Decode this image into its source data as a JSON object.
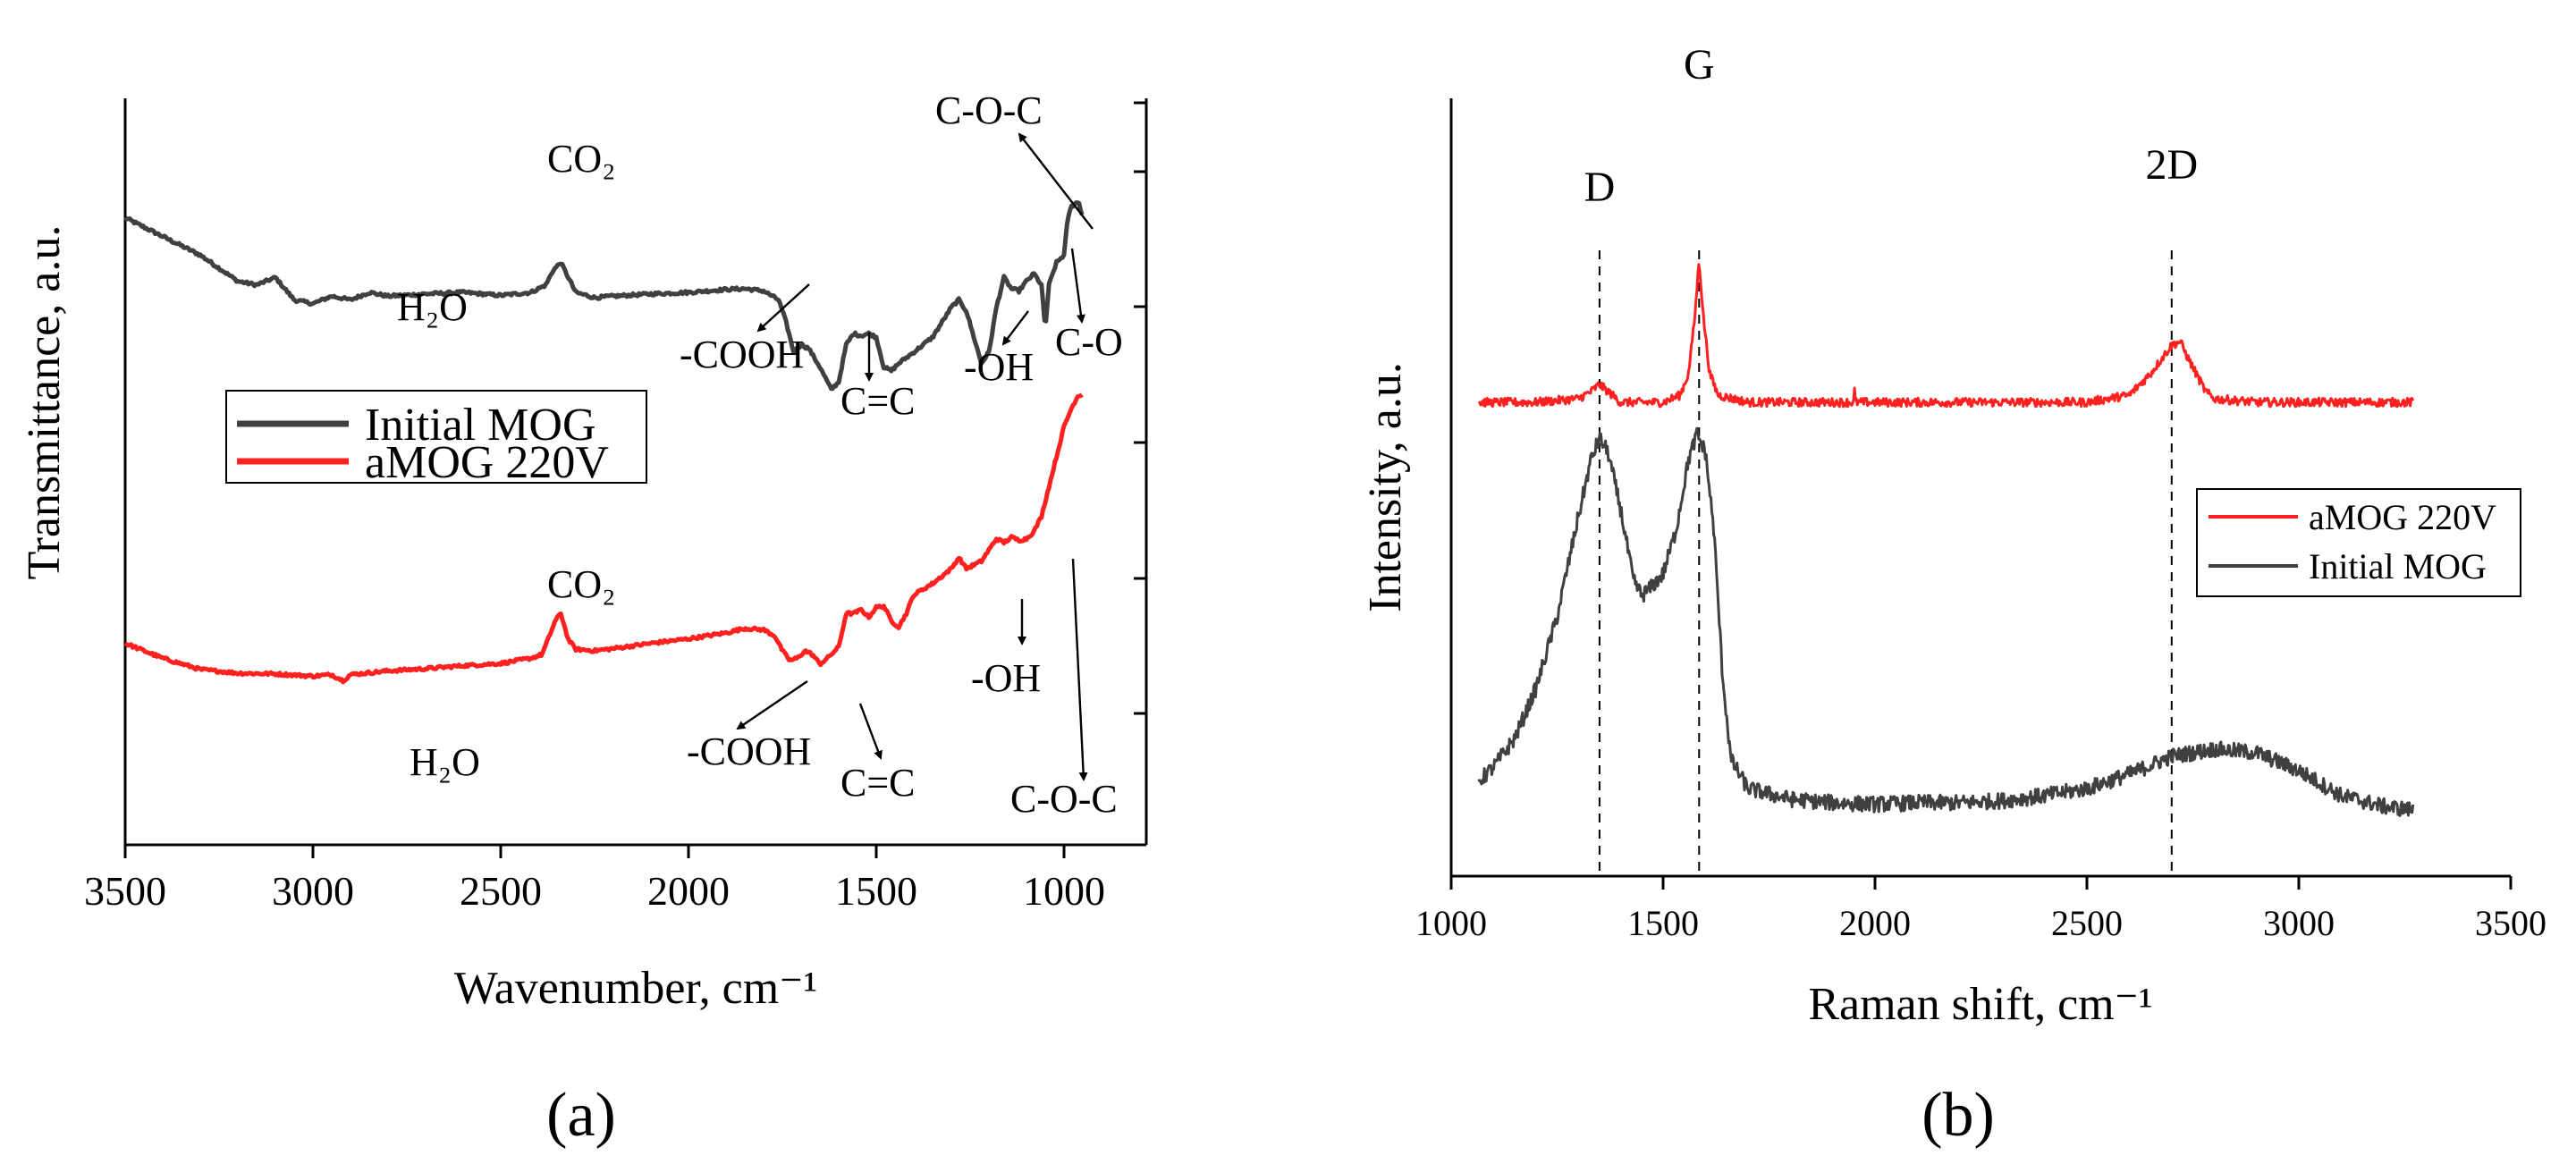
{
  "chart_data": [
    {
      "panel_label": "(a)",
      "type": "line",
      "xlabel": "Wavenumber, cm⁻¹",
      "ylabel": "Transmittance, a.u.",
      "xlim": [
        3500,
        950
      ],
      "x_reversed": true,
      "xticks": [
        3500,
        3000,
        2500,
        2000,
        1500,
        1000
      ],
      "yticks_labeled": false,
      "legend": {
        "position": "center-left",
        "entries": [
          "Initial MOG",
          "aMOG 220V"
        ]
      },
      "series": [
        {
          "name": "Initial MOG",
          "color": "#404040",
          "points": [
            [
              3500,
              0.84
            ],
            [
              3400,
              0.815
            ],
            [
              3300,
              0.79
            ],
            [
              3200,
              0.755
            ],
            [
              3150,
              0.75
            ],
            [
              3100,
              0.76
            ],
            [
              3050,
              0.73
            ],
            [
              3000,
              0.725
            ],
            [
              2950,
              0.735
            ],
            [
              2900,
              0.73
            ],
            [
              2850,
              0.74
            ],
            [
              2800,
              0.735
            ],
            [
              2700,
              0.738
            ],
            [
              2600,
              0.74
            ],
            [
              2500,
              0.736
            ],
            [
              2420,
              0.74
            ],
            [
              2380,
              0.75
            ],
            [
              2360,
              0.77
            ],
            [
              2340,
              0.78
            ],
            [
              2320,
              0.76
            ],
            [
              2300,
              0.74
            ],
            [
              2250,
              0.733
            ],
            [
              2200,
              0.735
            ],
            [
              2100,
              0.738
            ],
            [
              2000,
              0.74
            ],
            [
              1900,
              0.744
            ],
            [
              1850,
              0.745
            ],
            [
              1800,
              0.742
            ],
            [
              1760,
              0.73
            ],
            [
              1740,
              0.7
            ],
            [
              1720,
              0.66
            ],
            [
              1700,
              0.67
            ],
            [
              1680,
              0.665
            ],
            [
              1650,
              0.64
            ],
            [
              1620,
              0.61
            ],
            [
              1600,
              0.62
            ],
            [
              1580,
              0.67
            ],
            [
              1560,
              0.685
            ],
            [
              1540,
              0.682
            ],
            [
              1520,
              0.685
            ],
            [
              1500,
              0.68
            ],
            [
              1480,
              0.64
            ],
            [
              1460,
              0.635
            ],
            [
              1440,
              0.645
            ],
            [
              1400,
              0.66
            ],
            [
              1350,
              0.68
            ],
            [
              1300,
              0.72
            ],
            [
              1280,
              0.73
            ],
            [
              1260,
              0.715
            ],
            [
              1240,
              0.68
            ],
            [
              1220,
              0.645
            ],
            [
              1200,
              0.66
            ],
            [
              1180,
              0.72
            ],
            [
              1160,
              0.76
            ],
            [
              1140,
              0.745
            ],
            [
              1120,
              0.742
            ],
            [
              1100,
              0.755
            ],
            [
              1080,
              0.765
            ],
            [
              1060,
              0.75
            ],
            [
              1050,
              0.69
            ],
            [
              1040,
              0.75
            ],
            [
              1020,
              0.78
            ],
            [
              1000,
              0.79
            ],
            [
              990,
              0.84
            ],
            [
              980,
              0.855
            ],
            [
              970,
              0.86
            ],
            [
              960,
              0.86
            ],
            [
              950,
              0.84
            ]
          ]
        },
        {
          "name": "aMOG 220V",
          "color": "#ff2020",
          "points": [
            [
              3500,
              0.27
            ],
            [
              3400,
              0.25
            ],
            [
              3300,
              0.235
            ],
            [
              3200,
              0.23
            ],
            [
              3100,
              0.229
            ],
            [
              3000,
              0.226
            ],
            [
              2950,
              0.228
            ],
            [
              2920,
              0.22
            ],
            [
              2900,
              0.228
            ],
            [
              2800,
              0.233
            ],
            [
              2700,
              0.236
            ],
            [
              2600,
              0.24
            ],
            [
              2500,
              0.243
            ],
            [
              2420,
              0.25
            ],
            [
              2390,
              0.255
            ],
            [
              2370,
              0.28
            ],
            [
              2355,
              0.3
            ],
            [
              2340,
              0.31
            ],
            [
              2320,
              0.275
            ],
            [
              2300,
              0.262
            ],
            [
              2250,
              0.26
            ],
            [
              2200,
              0.263
            ],
            [
              2100,
              0.27
            ],
            [
              2000,
              0.276
            ],
            [
              1900,
              0.284
            ],
            [
              1850,
              0.29
            ],
            [
              1800,
              0.288
            ],
            [
              1770,
              0.28
            ],
            [
              1750,
              0.26
            ],
            [
              1730,
              0.247
            ],
            [
              1710,
              0.25
            ],
            [
              1690,
              0.26
            ],
            [
              1670,
              0.255
            ],
            [
              1650,
              0.242
            ],
            [
              1630,
              0.25
            ],
            [
              1600,
              0.265
            ],
            [
              1580,
              0.31
            ],
            [
              1560,
              0.31
            ],
            [
              1540,
              0.315
            ],
            [
              1520,
              0.305
            ],
            [
              1500,
              0.318
            ],
            [
              1480,
              0.32
            ],
            [
              1460,
              0.3
            ],
            [
              1440,
              0.292
            ],
            [
              1420,
              0.31
            ],
            [
              1400,
              0.335
            ],
            [
              1350,
              0.35
            ],
            [
              1300,
              0.37
            ],
            [
              1280,
              0.385
            ],
            [
              1260,
              0.37
            ],
            [
              1240,
              0.375
            ],
            [
              1220,
              0.38
            ],
            [
              1200,
              0.395
            ],
            [
              1180,
              0.41
            ],
            [
              1160,
              0.405
            ],
            [
              1140,
              0.412
            ],
            [
              1120,
              0.408
            ],
            [
              1100,
              0.41
            ],
            [
              1080,
              0.42
            ],
            [
              1060,
              0.44
            ],
            [
              1040,
              0.48
            ],
            [
              1020,
              0.52
            ],
            [
              1000,
              0.56
            ],
            [
              980,
              0.585
            ],
            [
              965,
              0.6
            ],
            [
              950,
              0.605
            ]
          ]
        }
      ],
      "annotations": [
        "CO₂",
        "H₂O",
        "-COOH",
        "C=C",
        "-OH",
        "C-O",
        "C-O-C",
        "CO₂",
        "H₂O",
        "-COOH",
        "C=C",
        "-OH",
        "C-O-C"
      ]
    },
    {
      "panel_label": "(b)",
      "type": "line",
      "xlabel": "Raman shift, cm⁻¹",
      "ylabel": "Intensity, a.u.",
      "xlim": [
        1000,
        3500
      ],
      "xticks": [
        1000,
        1500,
        2000,
        2500,
        3000,
        3500
      ],
      "yticks_labeled": false,
      "legend": {
        "position": "right",
        "entries": [
          "aMOG 220V",
          "Initial MOG"
        ]
      },
      "reference_lines_x": [
        1350,
        1585,
        2700
      ],
      "peak_labels": [
        {
          "text": "D",
          "x": 1350
        },
        {
          "text": "G",
          "x": 1585
        },
        {
          "text": "2D",
          "x": 2700
        }
      ],
      "series": [
        {
          "name": "aMOG 220V",
          "color": "#ff2020",
          "points": [
            [
              1065,
              0.6
            ],
            [
              1200,
              0.6
            ],
            [
              1300,
              0.605
            ],
            [
              1330,
              0.615
            ],
            [
              1350,
              0.625
            ],
            [
              1370,
              0.615
            ],
            [
              1400,
              0.6
            ],
            [
              1500,
              0.6
            ],
            [
              1540,
              0.61
            ],
            [
              1560,
              0.64
            ],
            [
              1575,
              0.72
            ],
            [
              1585,
              0.8
            ],
            [
              1595,
              0.72
            ],
            [
              1610,
              0.64
            ],
            [
              1630,
              0.61
            ],
            [
              1700,
              0.6
            ],
            [
              1800,
              0.6
            ],
            [
              1900,
              0.6
            ],
            [
              1950,
              0.6
            ],
            [
              1952,
              0.62
            ],
            [
              1954,
              0.6
            ],
            [
              2000,
              0.6
            ],
            [
              2200,
              0.6
            ],
            [
              2500,
              0.6
            ],
            [
              2600,
              0.61
            ],
            [
              2650,
              0.64
            ],
            [
              2700,
              0.68
            ],
            [
              2720,
              0.685
            ],
            [
              2740,
              0.66
            ],
            [
              2780,
              0.615
            ],
            [
              2800,
              0.605
            ],
            [
              2900,
              0.6
            ],
            [
              3000,
              0.6
            ],
            [
              3270,
              0.6
            ]
          ]
        },
        {
          "name": "Initial MOG",
          "color": "#404040",
          "points": [
            [
              1065,
              0.07
            ],
            [
              1100,
              0.09
            ],
            [
              1150,
              0.13
            ],
            [
              1200,
              0.2
            ],
            [
              1250,
              0.3
            ],
            [
              1300,
              0.44
            ],
            [
              1330,
              0.52
            ],
            [
              1350,
              0.55
            ],
            [
              1370,
              0.53
            ],
            [
              1400,
              0.45
            ],
            [
              1430,
              0.35
            ],
            [
              1450,
              0.33
            ],
            [
              1470,
              0.34
            ],
            [
              1500,
              0.36
            ],
            [
              1530,
              0.42
            ],
            [
              1560,
              0.52
            ],
            [
              1580,
              0.555
            ],
            [
              1600,
              0.53
            ],
            [
              1620,
              0.42
            ],
            [
              1640,
              0.22
            ],
            [
              1660,
              0.1
            ],
            [
              1700,
              0.06
            ],
            [
              1800,
              0.045
            ],
            [
              1900,
              0.04
            ],
            [
              2000,
              0.038
            ],
            [
              2100,
              0.04
            ],
            [
              2200,
              0.04
            ],
            [
              2300,
              0.043
            ],
            [
              2400,
              0.05
            ],
            [
              2500,
              0.06
            ],
            [
              2600,
              0.08
            ],
            [
              2700,
              0.105
            ],
            [
              2800,
              0.115
            ],
            [
              2900,
              0.11
            ],
            [
              3000,
              0.085
            ],
            [
              3100,
              0.05
            ],
            [
              3200,
              0.035
            ],
            [
              3270,
              0.03
            ]
          ]
        }
      ]
    }
  ],
  "texts": {
    "a": {
      "co2_top": "CO₂",
      "h2o_top": "H₂O",
      "cooh_top": "-COOH",
      "cc_top": "C=C",
      "oh_top": "-OH",
      "co_top": "C-O",
      "coc_top": "C-O-C",
      "co2_bottom": "CO₂",
      "h2o_bottom": "H₂O",
      "cooh_bottom": "-COOH",
      "cc_bottom": "C=C",
      "oh_bottom": "-OH",
      "coc_bottom": "C-O-C"
    }
  }
}
